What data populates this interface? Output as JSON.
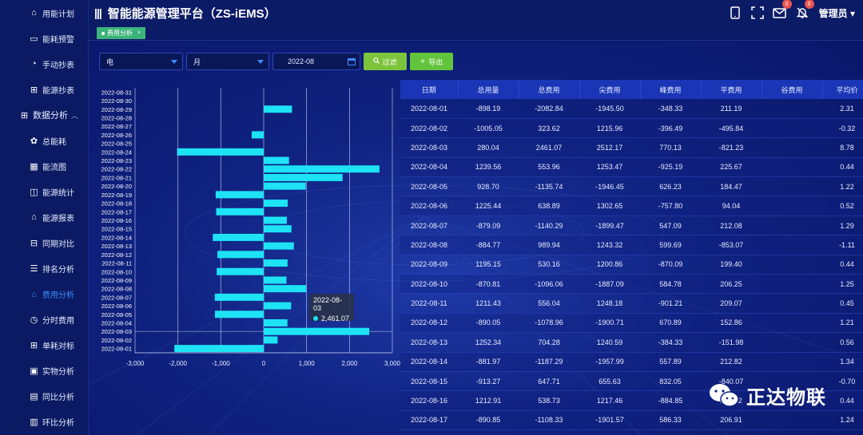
{
  "app": {
    "title": "智能能源管理平台（ZS-iEMS）",
    "user": "管理员",
    "mail_badge": "0",
    "bell_badge": "0"
  },
  "sidebar": {
    "items": [
      {
        "label": "用能计划",
        "icon": "home-icon"
      },
      {
        "label": "能耗预警",
        "icon": "monitor-icon"
      },
      {
        "label": "手动抄表",
        "icon": "meter-icon"
      },
      {
        "label": "能源抄表",
        "icon": "network-icon"
      },
      {
        "label": "数据分析",
        "icon": "network-icon",
        "group": true
      },
      {
        "label": "总能耗",
        "icon": "gear-icon"
      },
      {
        "label": "能流图",
        "icon": "calendar-icon"
      },
      {
        "label": "能源统计",
        "icon": "map-icon"
      },
      {
        "label": "能源报表",
        "icon": "home-icon"
      },
      {
        "label": "同期对比",
        "icon": "compare-icon"
      },
      {
        "label": "排名分析",
        "icon": "list-icon"
      },
      {
        "label": "费用分析",
        "icon": "home-icon",
        "active": true
      },
      {
        "label": "分时费用",
        "icon": "clock-icon"
      },
      {
        "label": "单耗对标",
        "icon": "network-icon"
      },
      {
        "label": "实物分析",
        "icon": "box-icon"
      },
      {
        "label": "同比分析",
        "icon": "doc-icon"
      },
      {
        "label": "环比分析",
        "icon": "grid-icon"
      }
    ]
  },
  "tabs": [
    {
      "label": "费用分析"
    }
  ],
  "filters": {
    "energy": "电",
    "period": "月",
    "date": "2022-08",
    "filter_btn": "过滤",
    "export_btn": "导出"
  },
  "chart_data": {
    "type": "bar",
    "orientation": "horizontal",
    "categories": [
      "2022-08-01",
      "2022-08-02",
      "2022-08-03",
      "2022-08-04",
      "2022-08-05",
      "2022-08-06",
      "2022-08-07",
      "2022-08-08",
      "2022-08-09",
      "2022-08-10",
      "2022-08-11",
      "2022-08-12",
      "2022-08-13",
      "2022-08-14",
      "2022-08-15",
      "2022-08-16",
      "2022-08-17",
      "2022-08-18",
      "2022-08-19",
      "2022-08-20",
      "2022-08-21",
      "2022-08-22",
      "2022-08-23",
      "2022-08-24",
      "2022-08-25",
      "2022-08-26",
      "2022-08-27",
      "2022-08-28",
      "2022-08-29",
      "2022-08-30",
      "2022-08-31"
    ],
    "values": [
      -2082.84,
      323.62,
      2461.07,
      553.96,
      -1135.74,
      638.89,
      -1140.29,
      989.94,
      530.16,
      -1096.06,
      556.04,
      -1078.96,
      704.28,
      -1187.29,
      647.71,
      538.73,
      -1108.33,
      560,
      -1120,
      980,
      1840,
      2700,
      590,
      -2020,
      0,
      -280,
      0,
      0,
      660,
      0,
      0
    ],
    "xlim": [
      -3000,
      3000
    ],
    "xticks": [
      "-3,000",
      "-2,000",
      "-1,000",
      "0",
      "1,000",
      "2,000",
      "3,000"
    ],
    "xtick_values": [
      -3000,
      -2000,
      -1000,
      0,
      1000,
      2000,
      3000
    ],
    "color": "#1de3f5",
    "tooltip": {
      "label": "2022-08-03",
      "value": "2,461.07"
    }
  },
  "table": {
    "headers": [
      "日期",
      "总用量",
      "总费用",
      "尖费用",
      "峰费用",
      "平费用",
      "谷费用",
      "平均价"
    ],
    "rows": [
      [
        "2022-08-01",
        "-898.19",
        "-2082.84",
        "-1945.50",
        "-348.33",
        "211.19",
        "",
        "2.31"
      ],
      [
        "2022-08-02",
        "-1005.05",
        "323.62",
        "1215.96",
        "-396.49",
        "-495.84",
        "",
        "-0.32"
      ],
      [
        "2022-08-03",
        "280.04",
        "2461.07",
        "2512.17",
        "770.13",
        "-821.23",
        "",
        "8.78"
      ],
      [
        "2022-08-04",
        "1239.56",
        "553.96",
        "1253.47",
        "-925.19",
        "225.67",
        "",
        "0.44"
      ],
      [
        "2022-08-05",
        "928.70",
        "-1135.74",
        "-1946.45",
        "626.23",
        "184.47",
        "",
        "1.22"
      ],
      [
        "2022-08-06",
        "1225.44",
        "638.89",
        "1302.65",
        "-757.80",
        "94.04",
        "",
        "0.52"
      ],
      [
        "2022-08-07",
        "-879.09",
        "-1140.29",
        "-1899.47",
        "547.09",
        "212.08",
        "",
        "1.29"
      ],
      [
        "2022-08-08",
        "-884.77",
        "989.94",
        "1243.32",
        "599.69",
        "-853.07",
        "",
        "-1.11"
      ],
      [
        "2022-08-09",
        "1195.15",
        "530.16",
        "1200.86",
        "-870.09",
        "199.40",
        "",
        "0.44"
      ],
      [
        "2022-08-10",
        "-870.81",
        "-1096.06",
        "-1887.09",
        "584.78",
        "206.25",
        "",
        "1.25"
      ],
      [
        "2022-08-11",
        "1211.43",
        "556.04",
        "1248.18",
        "-901.21",
        "209.07",
        "",
        "0.45"
      ],
      [
        "2022-08-12",
        "-890.05",
        "-1078.96",
        "-1900.71",
        "670.89",
        "152.86",
        "",
        "1.21"
      ],
      [
        "2022-08-13",
        "1252.34",
        "704.28",
        "1240.59",
        "-384.33",
        "-151.98",
        "",
        "0.56"
      ],
      [
        "2022-08-14",
        "-881.97",
        "-1187.29",
        "-1957.99",
        "557.89",
        "212.82",
        "",
        "1.34"
      ],
      [
        "2022-08-15",
        "-913.27",
        "647.71",
        "655.63",
        "832.05",
        "-840.07",
        "",
        "-0.70"
      ],
      [
        "2022-08-16",
        "1212.91",
        "538.73",
        "1217.46",
        "-884.85",
        "206.12",
        "",
        "0.44"
      ],
      [
        "2022-08-17",
        "-890.85",
        "-1108.33",
        "-1901.57",
        "586.33",
        "206.91",
        "",
        "1.24"
      ]
    ]
  },
  "watermark": {
    "text": "正达物联"
  }
}
